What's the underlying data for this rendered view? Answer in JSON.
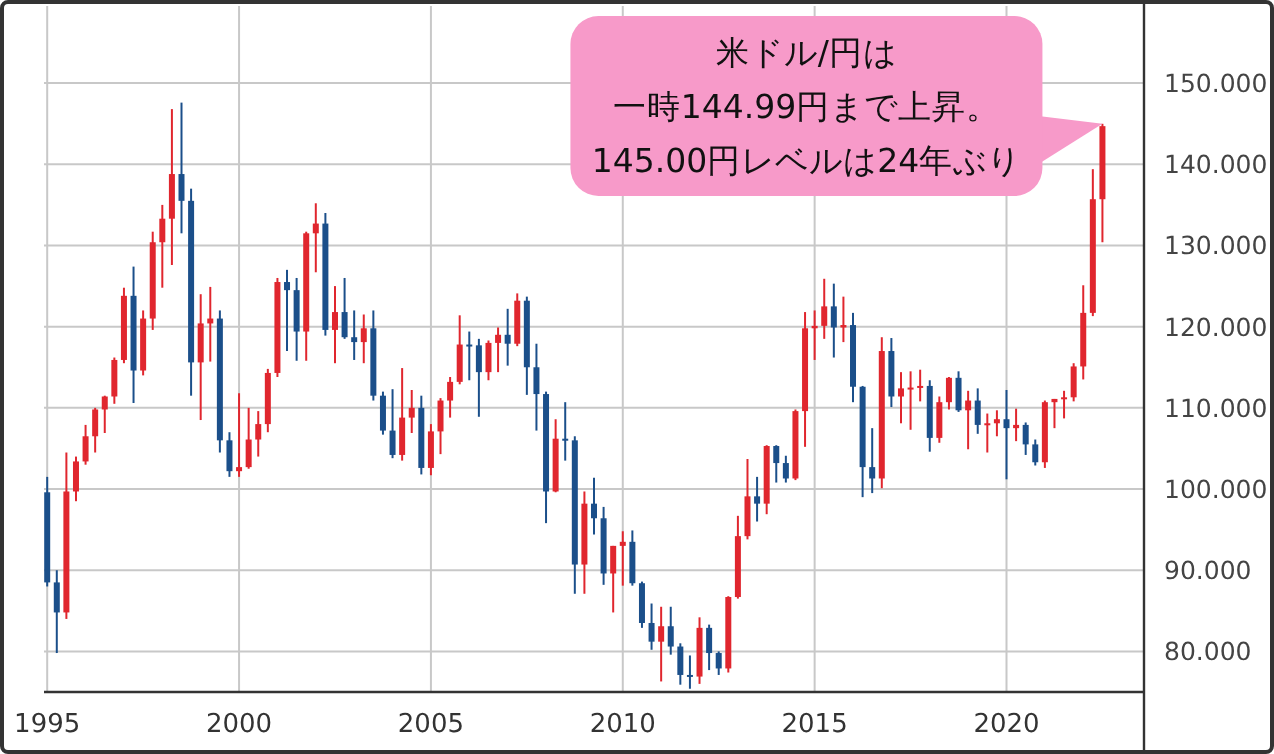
{
  "chart_data": {
    "type": "candlestick",
    "series": [
      {
        "color": "#e0262e",
        "x": [
          "1995-07",
          "1995-10",
          "1996-01",
          "1996-04",
          "1996-07",
          "1996-10",
          "1997-01",
          "1997-07",
          "1997-10",
          "1998-01",
          "1998-04",
          "1999-01",
          "1999-04",
          "2000-01",
          "2000-04",
          "2000-07",
          "2000-10",
          "2001-01",
          "2001-10",
          "2002-01",
          "2002-07",
          "2003-04",
          "2004-04",
          "2004-07",
          "2005-01",
          "2005-04",
          "2005-07",
          "2005-10",
          "2006-07",
          "2006-10",
          "2007-04",
          "2008-04",
          "2009-01",
          "2009-10",
          "2010-01",
          "2011-01",
          "2012-01",
          "2012-10",
          "2013-01",
          "2013-04",
          "2013-10",
          "2014-07",
          "2014-10",
          "2015-01",
          "2015-04",
          "2015-10",
          "2016-10",
          "2017-04",
          "2017-07",
          "2017-10",
          "2018-04",
          "2018-07",
          "2019-01",
          "2019-07",
          "2019-10",
          "2020-04",
          "2021-01",
          "2021-04",
          "2021-07",
          "2021-10",
          "2022-01",
          "2022-04",
          "2022-07"
        ],
        "ohlc": [
          [
            84.8,
            104.5,
            84.0,
            99.7
          ],
          [
            99.7,
            104.0,
            98.5,
            103.4
          ],
          [
            103.4,
            107.9,
            103.0,
            106.5
          ],
          [
            106.5,
            110.0,
            104.5,
            109.8
          ],
          [
            109.8,
            111.5,
            106.9,
            111.4
          ],
          [
            111.4,
            116.2,
            110.5,
            115.9
          ],
          [
            115.9,
            124.8,
            115.5,
            123.8
          ],
          [
            114.6,
            122.0,
            114.0,
            121.0
          ],
          [
            121.0,
            131.7,
            119.6,
            130.4
          ],
          [
            130.4,
            135.0,
            124.8,
            133.3
          ],
          [
            133.3,
            146.8,
            127.6,
            138.8
          ],
          [
            115.6,
            124.0,
            108.5,
            120.4
          ],
          [
            120.4,
            124.9,
            115.7,
            121.0
          ],
          [
            102.2,
            111.8,
            101.5,
            102.7
          ],
          [
            102.7,
            110.0,
            102.5,
            106.1
          ],
          [
            106.1,
            109.6,
            104.0,
            108.0
          ],
          [
            108.0,
            114.8,
            107.0,
            114.3
          ],
          [
            114.3,
            126.0,
            113.8,
            125.5
          ],
          [
            119.4,
            131.7,
            115.8,
            131.5
          ],
          [
            131.5,
            135.2,
            126.7,
            132.7
          ],
          [
            119.6,
            125.0,
            115.5,
            121.8
          ],
          [
            118.1,
            121.5,
            115.5,
            119.8
          ],
          [
            104.2,
            114.9,
            103.5,
            108.8
          ],
          [
            108.8,
            112.2,
            106.9,
            110.0
          ],
          [
            102.6,
            108.0,
            101.7,
            107.1
          ],
          [
            107.1,
            111.2,
            104.3,
            110.9
          ],
          [
            110.9,
            113.8,
            108.8,
            113.2
          ],
          [
            113.2,
            121.4,
            112.9,
            117.8
          ],
          [
            114.4,
            118.3,
            113.4,
            118.0
          ],
          [
            118.0,
            119.9,
            114.4,
            119.0
          ],
          [
            117.9,
            124.1,
            117.6,
            123.2
          ],
          [
            99.7,
            108.6,
            99.6,
            106.2
          ],
          [
            90.7,
            99.7,
            87.1,
            98.2
          ],
          [
            89.6,
            93.0,
            84.8,
            93.0
          ],
          [
            93.0,
            94.8,
            88.1,
            93.5
          ],
          [
            81.2,
            85.5,
            76.3,
            83.1
          ],
          [
            76.9,
            84.2,
            76.0,
            82.9
          ],
          [
            77.9,
            86.8,
            77.4,
            86.7
          ],
          [
            86.7,
            96.7,
            86.5,
            94.2
          ],
          [
            94.2,
            103.7,
            93.8,
            99.1
          ],
          [
            98.2,
            105.4,
            96.9,
            105.3
          ],
          [
            101.3,
            109.8,
            101.1,
            109.6
          ],
          [
            109.6,
            121.8,
            105.2,
            119.8
          ],
          [
            119.8,
            122.0,
            115.9,
            120.1
          ],
          [
            120.1,
            125.9,
            118.5,
            122.5
          ],
          [
            119.9,
            123.7,
            118.1,
            120.2
          ],
          [
            101.3,
            118.7,
            100.1,
            117.0
          ],
          [
            111.4,
            114.4,
            108.1,
            112.4
          ],
          [
            112.4,
            114.5,
            107.3,
            112.5
          ],
          [
            112.5,
            114.7,
            110.8,
            112.7
          ],
          [
            106.3,
            111.4,
            105.7,
            110.7
          ],
          [
            110.7,
            113.8,
            109.8,
            113.7
          ],
          [
            109.7,
            112.1,
            104.9,
            110.9
          ],
          [
            107.9,
            109.3,
            104.5,
            108.1
          ],
          [
            108.1,
            109.7,
            106.5,
            108.6
          ],
          [
            107.5,
            109.9,
            105.9,
            107.9
          ],
          [
            103.3,
            110.9,
            102.6,
            110.7
          ],
          [
            110.7,
            111.1,
            107.5,
            111.1
          ],
          [
            111.1,
            112.1,
            108.7,
            111.3
          ],
          [
            111.3,
            115.5,
            110.8,
            115.1
          ],
          [
            115.1,
            125.1,
            113.5,
            121.7
          ],
          [
            121.7,
            139.4,
            121.3,
            135.7
          ],
          [
            135.7,
            144.99,
            130.4,
            144.7
          ]
        ]
      },
      {
        "color": "#1b4f8a",
        "x": [
          "1995-01",
          "1995-04",
          "1997-04",
          "1998-07",
          "1998-10",
          "1999-07",
          "1999-10",
          "2001-04",
          "2001-07",
          "2002-04",
          "2002-10",
          "2003-01",
          "2003-07",
          "2003-10",
          "2004-01",
          "2004-10",
          "2006-01",
          "2006-04",
          "2007-01",
          "2007-07",
          "2007-10",
          "2008-01",
          "2008-07",
          "2008-10",
          "2009-04",
          "2009-07",
          "2010-04",
          "2010-07",
          "2010-10",
          "2011-04",
          "2011-07",
          "2011-10",
          "2012-04",
          "2012-07",
          "2013-07",
          "2014-01",
          "2014-04",
          "2015-07",
          "2016-01",
          "2016-04",
          "2016-07",
          "2017-01",
          "2018-01",
          "2018-10",
          "2019-04",
          "2020-01",
          "2020-07",
          "2020-10"
        ],
        "ohlc": [
          [
            99.6,
            101.5,
            88.0,
            88.5
          ],
          [
            88.5,
            90.0,
            79.8,
            84.8
          ],
          [
            123.8,
            127.4,
            110.6,
            114.6
          ],
          [
            138.8,
            147.6,
            131.5,
            135.5
          ],
          [
            135.5,
            137.0,
            111.5,
            115.6
          ],
          [
            121.0,
            122.0,
            104.5,
            106.0
          ],
          [
            106.0,
            107.0,
            101.5,
            102.2
          ],
          [
            125.5,
            127.0,
            117.0,
            124.5
          ],
          [
            124.5,
            126.0,
            115.8,
            119.4
          ],
          [
            132.7,
            134.0,
            118.9,
            119.6
          ],
          [
            121.8,
            126.0,
            118.5,
            118.7
          ],
          [
            118.7,
            122.0,
            115.9,
            118.1
          ],
          [
            119.8,
            122.0,
            110.9,
            111.5
          ],
          [
            111.5,
            112.0,
            106.7,
            107.2
          ],
          [
            107.2,
            112.3,
            103.8,
            104.2
          ],
          [
            110.0,
            111.5,
            101.8,
            102.6
          ],
          [
            117.8,
            119.4,
            113.4,
            117.7
          ],
          [
            117.7,
            118.5,
            108.9,
            114.4
          ],
          [
            119.0,
            122.2,
            115.2,
            117.9
          ],
          [
            123.2,
            123.7,
            111.6,
            115.0
          ],
          [
            115.0,
            117.9,
            107.2,
            111.7
          ],
          [
            111.7,
            112.0,
            95.8,
            99.7
          ],
          [
            106.2,
            110.7,
            103.5,
            106.0
          ],
          [
            106.0,
            106.5,
            87.1,
            90.7
          ],
          [
            98.2,
            101.4,
            94.4,
            96.4
          ],
          [
            96.4,
            97.8,
            88.2,
            89.6
          ],
          [
            93.5,
            94.9,
            88.1,
            88.4
          ],
          [
            88.4,
            88.6,
            82.9,
            83.5
          ],
          [
            83.5,
            85.9,
            80.2,
            81.2
          ],
          [
            83.1,
            85.5,
            79.6,
            80.6
          ],
          [
            80.6,
            81.0,
            75.9,
            77.1
          ],
          [
            77.1,
            79.5,
            75.4,
            76.9
          ],
          [
            82.9,
            83.3,
            77.7,
            79.8
          ],
          [
            79.8,
            80.0,
            77.1,
            77.9
          ],
          [
            99.1,
            101.5,
            96.0,
            98.2
          ],
          [
            105.3,
            105.4,
            100.8,
            103.2
          ],
          [
            103.2,
            104.1,
            100.8,
            101.3
          ],
          [
            122.5,
            125.3,
            116.2,
            119.9
          ],
          [
            120.2,
            121.7,
            110.7,
            112.6
          ],
          [
            112.6,
            112.7,
            99.0,
            102.7
          ],
          [
            102.7,
            107.5,
            99.5,
            101.3
          ],
          [
            117.0,
            118.6,
            110.1,
            111.4
          ],
          [
            112.7,
            113.4,
            104.6,
            106.3
          ],
          [
            113.7,
            114.5,
            109.5,
            109.7
          ],
          [
            110.9,
            112.4,
            106.8,
            107.9
          ],
          [
            108.6,
            112.2,
            101.2,
            107.5
          ],
          [
            107.9,
            108.2,
            104.2,
            105.5
          ],
          [
            105.5,
            106.1,
            102.9,
            103.3
          ]
        ]
      }
    ],
    "xlim": [
      "1994-12",
      "2023-08"
    ],
    "xticks": [
      "1995",
      "2000",
      "2005",
      "2010",
      "2015",
      "2020"
    ],
    "ylim": [
      75,
      159.5
    ],
    "yticks": [
      {
        "value": 80,
        "label": "80.000"
      },
      {
        "value": 90,
        "label": "90.000"
      },
      {
        "value": 100,
        "label": "100.000"
      },
      {
        "value": 110,
        "label": "110.000"
      },
      {
        "value": 120,
        "label": "120.000"
      },
      {
        "value": 130,
        "label": "130.000"
      },
      {
        "value": 140,
        "label": "140.000"
      },
      {
        "value": 150,
        "label": "150.000"
      }
    ],
    "grid": true,
    "annotations": [
      "米ドル/円は",
      "一時144.99円まで上昇。",
      {
        "text": "145.00円レベルは24年ぶり",
        "x": "2022-07",
        "y": 144.99
      }
    ]
  }
}
